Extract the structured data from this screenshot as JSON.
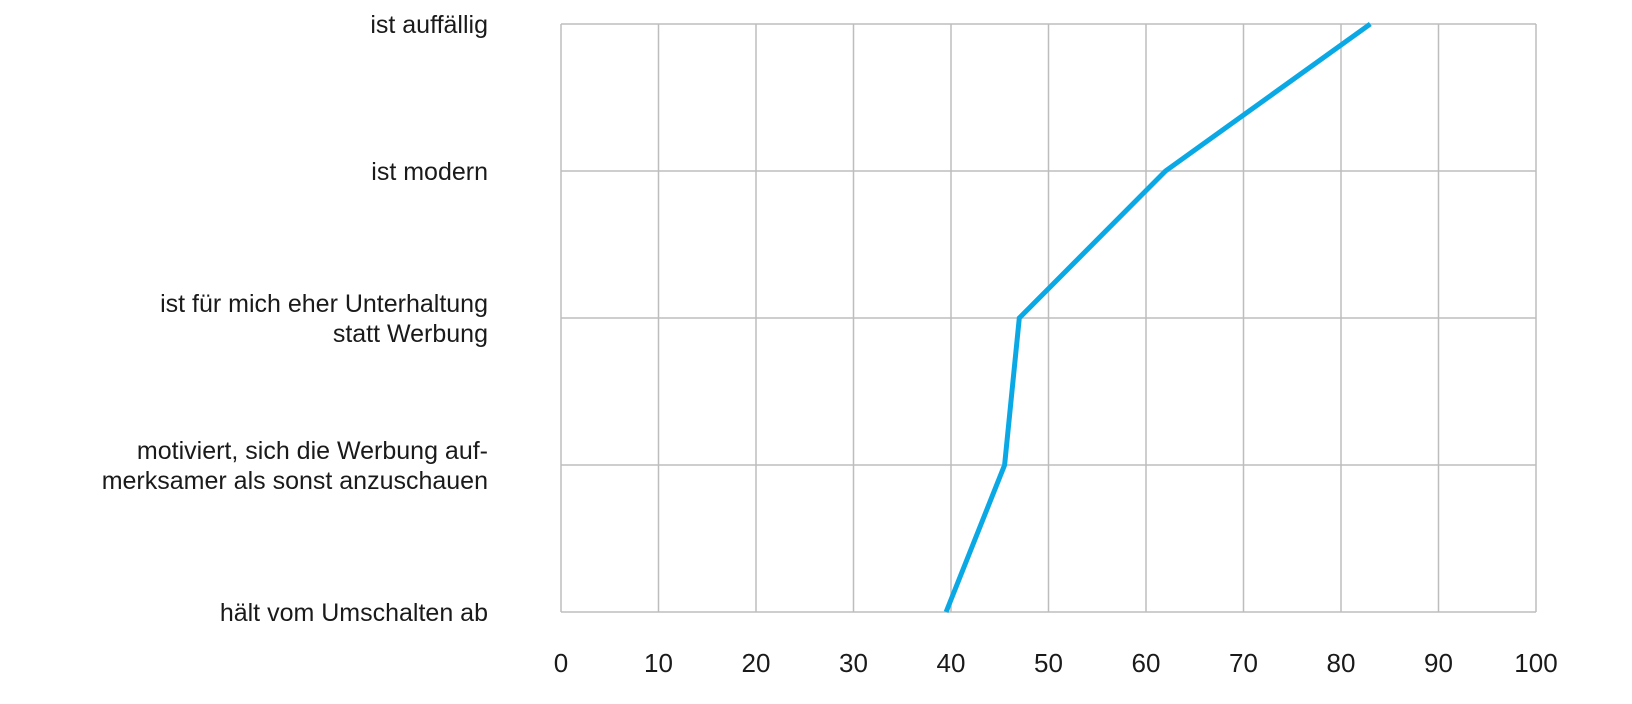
{
  "chart_data": {
    "type": "line",
    "orientation": "horizontal",
    "categories": [
      [
        "ist auffällig"
      ],
      [
        "ist modern"
      ],
      [
        "ist für mich eher Unterhaltung",
        "statt Werbung"
      ],
      [
        "motiviert, sich die Werbung auf-",
        "merksamer als sonst anzuschauen"
      ],
      [
        "hält vom Umschalten ab"
      ]
    ],
    "series": [
      {
        "values": [
          83,
          62,
          47,
          45.5,
          39.5
        ]
      }
    ],
    "xlim": [
      0,
      100
    ],
    "x_ticks": [
      "0",
      "10",
      "20",
      "30",
      "40",
      "50",
      "60",
      "70",
      "80",
      "90",
      "100"
    ],
    "grid": true,
    "line_color": "#0aa9e6",
    "grid_color": "#bdbdbd",
    "title": "",
    "xlabel": "",
    "ylabel": ""
  }
}
